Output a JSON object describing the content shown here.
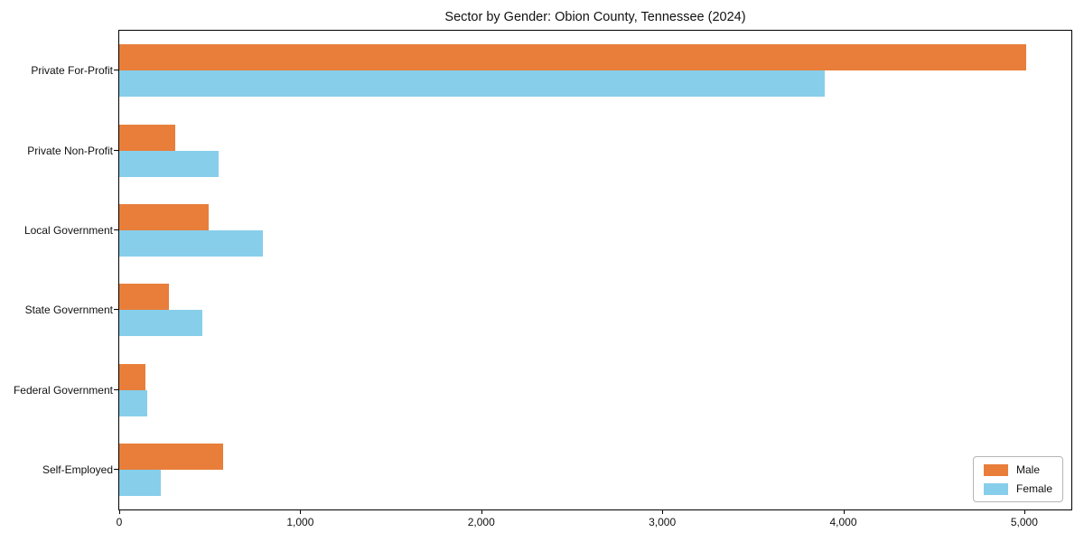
{
  "chart_data": {
    "type": "bar",
    "orientation": "horizontal",
    "title": "Sector by Gender: Obion County, Tennessee (2024)",
    "categories": [
      "Private For-Profit",
      "Private Non-Profit",
      "Local Government",
      "State Government",
      "Federal Government",
      "Self-Employed"
    ],
    "series": [
      {
        "name": "Male",
        "color": "#E87E3A",
        "values": [
          5010,
          310,
          495,
          275,
          145,
          575
        ]
      },
      {
        "name": "Female",
        "color": "#87CEEB",
        "values": [
          3900,
          550,
          795,
          460,
          155,
          230
        ]
      }
    ],
    "xlim": [
      0,
      5260
    ],
    "xticks": [
      0,
      1000,
      2000,
      3000,
      4000,
      5000
    ],
    "xtick_labels": [
      "0",
      "1,000",
      "2,000",
      "3,000",
      "4,000",
      "5,000"
    ],
    "xlabel": "",
    "ylabel": "",
    "grid": false,
    "legend_position": "lower right",
    "frame_color": "#000000",
    "background_color": "#ffffff"
  }
}
